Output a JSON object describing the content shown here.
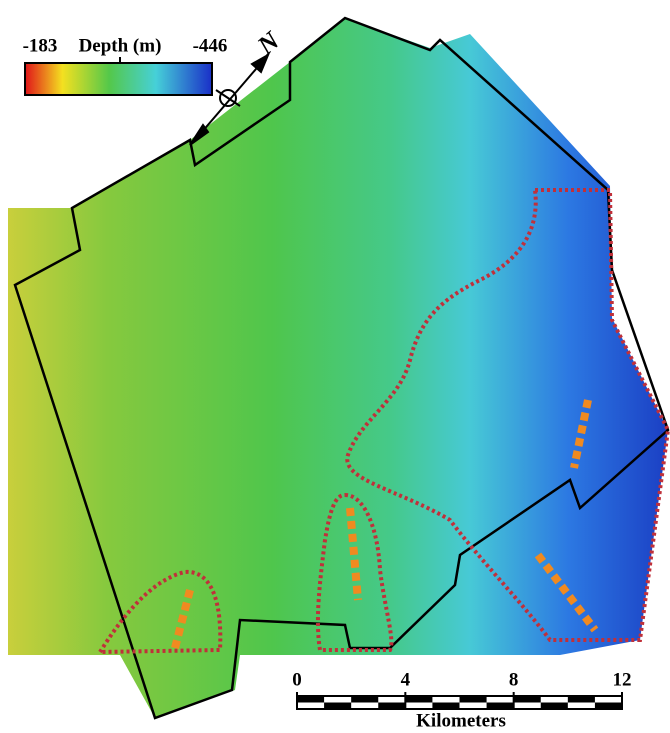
{
  "legend": {
    "min_label": "-183",
    "title": "Depth (m)",
    "max_label": "-446"
  },
  "north_arrow": {
    "label": "N"
  },
  "scale_bar": {
    "ticks": [
      "0",
      "4",
      "8",
      "12"
    ],
    "unit": "Kilometers"
  }
}
